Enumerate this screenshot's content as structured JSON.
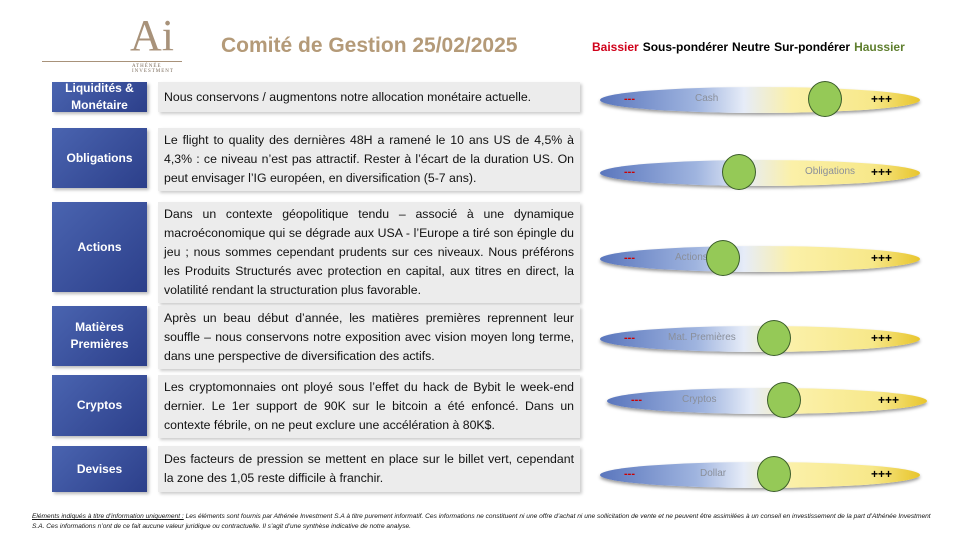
{
  "logo": {
    "mark": "Ai",
    "name": "ATHÉNÉE INVESTMENT"
  },
  "header": {
    "title": "Comité de Gestion 25/02/2025"
  },
  "legend": [
    {
      "label": "Baissier",
      "color": "#d0021b"
    },
    {
      "label": "Sous-pondérer",
      "color": "#000000"
    },
    {
      "label": "Neutre",
      "color": "#000000"
    },
    {
      "label": "Sur-pondérer",
      "color": "#000000"
    },
    {
      "label": "Haussier",
      "color": "#5f7f2e"
    }
  ],
  "scale": {
    "minus": "---",
    "plus": "+++"
  },
  "rows": [
    {
      "label": "Liquidités & Monétaire",
      "text": "Nous conservons / augmentons notre allocation monétaire actuelle.",
      "bar_label": "Cash",
      "position": 0.7
    },
    {
      "label": "Obligations",
      "text": "Le flight to quality des dernières 48H a ramené le 10 ans US de 4,5% à 4,3% : ce niveau n’est pas attractif. Rester à l’écart de la duration US. On peut envisager l’IG européen, en diversification (5-7 ans).",
      "bar_label": "Obligations",
      "position": 0.43
    },
    {
      "label": "Actions",
      "text": "Dans un contexte géopolitique tendu – associé à une dynamique macroéconomique qui se dégrade aux USA - l’Europe a tiré son épingle du jeu ; nous sommes cependant prudents sur ces niveaux. Nous préférons les Produits Structurés avec protection en capital, aux titres en direct, la volatilité rendant la structuration plus favorable.",
      "bar_label": "Actions",
      "position": 0.38
    },
    {
      "label": "Matières Premières",
      "text": "Après un beau début d’année, les matières premières reprennent leur souffle – nous conservons notre exposition avec vision moyen long terme, dans une perspective de diversification des actifs.",
      "bar_label": "Mat. Premières",
      "position": 0.54
    },
    {
      "label": "Cryptos",
      "text": "Les cryptomonnaies ont ployé sous l’effet du hack de Bybit le week-end dernier. Le 1er support de 90K sur le bitcoin a été enfoncé. Dans un contexte fébrile, on ne peut exclure une accélération à 80K$.",
      "bar_label": "Cryptos",
      "position": 0.55
    },
    {
      "label": "Devises",
      "text": "Des facteurs de pression se mettent en place sur le billet vert, cependant la zone des 1,05 reste difficile à franchir.",
      "bar_label": "Dollar",
      "position": 0.54
    }
  ],
  "footer": {
    "lead": "Eléments indiqués à titre d’information uniquement :",
    "text": " Les éléments sont fournis par Athénée Investment S.A à titre purement informatif. Ces informations ne constituent ni une offre d’achat ni une sollicitation de vente et ne peuvent être assimilées à un conseil en investissement de la part d’Athénée Investment S.A. Ces informations n’ont de ce fait aucune valeur juridique ou contractuelle. Il s’agit d’une synthèse indicative de notre analyse."
  }
}
